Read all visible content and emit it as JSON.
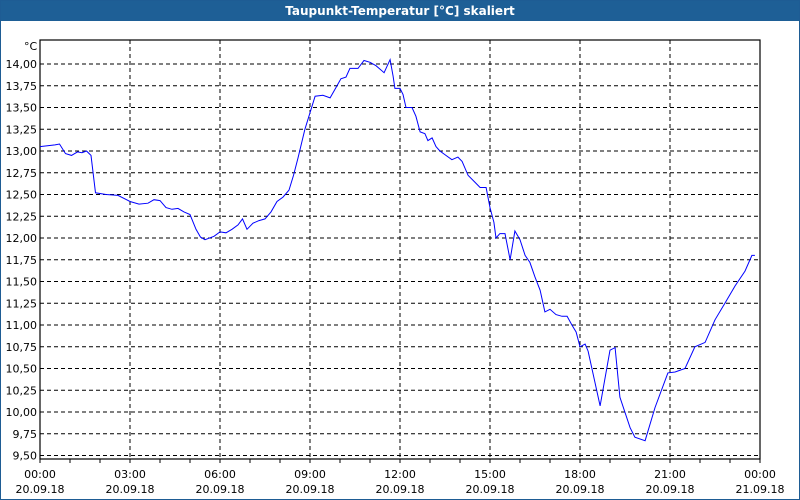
{
  "window": {
    "title": "Taupunkt-Temperatur [°C] skaliert"
  },
  "chart_data": {
    "type": "line",
    "title": "Taupunkt-Temperatur [°C] skaliert",
    "ylabel": "°C",
    "xlabel": "",
    "ylim": [
      9.5,
      14.0
    ],
    "xlim_hours": [
      0,
      24
    ],
    "grid": true,
    "line_color": "#0000ff",
    "y_ticks": [
      "9,50",
      "9,75",
      "10,00",
      "10,25",
      "10,50",
      "10,75",
      "11,00",
      "11,25",
      "11,50",
      "11,75",
      "12,00",
      "12,25",
      "12,50",
      "12,75",
      "13,00",
      "13,25",
      "13,50",
      "13,75",
      "14,00"
    ],
    "x_ticks": [
      {
        "time": "00:00",
        "date": "20.09.18"
      },
      {
        "time": "03:00",
        "date": "20.09.18"
      },
      {
        "time": "06:00",
        "date": "20.09.18"
      },
      {
        "time": "09:00",
        "date": "20.09.18"
      },
      {
        "time": "12:00",
        "date": "20.09.18"
      },
      {
        "time": "15:00",
        "date": "20.09.18"
      },
      {
        "time": "18:00",
        "date": "20.09.18"
      },
      {
        "time": "21:00",
        "date": "20.09.18"
      },
      {
        "time": "00:00",
        "date": "21.09.18"
      }
    ],
    "series": [
      {
        "name": "Taupunkt",
        "points": [
          [
            0,
            13.05
          ],
          [
            0.5,
            13.07
          ],
          [
            0.65,
            13.08
          ],
          [
            0.85,
            12.97
          ],
          [
            1.05,
            12.95
          ],
          [
            1.25,
            12.99
          ],
          [
            1.4,
            12.98
          ],
          [
            1.55,
            13.0
          ],
          [
            1.7,
            12.95
          ],
          [
            1.85,
            12.52
          ],
          [
            2.2,
            12.5
          ],
          [
            2.6,
            12.49
          ],
          [
            3.0,
            12.42
          ],
          [
            3.3,
            12.39
          ],
          [
            3.6,
            12.4
          ],
          [
            3.8,
            12.44
          ],
          [
            4.0,
            12.43
          ],
          [
            4.2,
            12.35
          ],
          [
            4.4,
            12.33
          ],
          [
            4.6,
            12.34
          ],
          [
            4.8,
            12.3
          ],
          [
            5.0,
            12.27
          ],
          [
            5.2,
            12.1
          ],
          [
            5.35,
            12.01
          ],
          [
            5.5,
            11.98
          ],
          [
            5.8,
            12.02
          ],
          [
            6.0,
            12.07
          ],
          [
            6.2,
            12.06
          ],
          [
            6.4,
            12.1
          ],
          [
            6.6,
            12.15
          ],
          [
            6.75,
            12.22
          ],
          [
            6.9,
            12.1
          ],
          [
            7.1,
            12.17
          ],
          [
            7.3,
            12.2
          ],
          [
            7.5,
            12.22
          ],
          [
            7.7,
            12.3
          ],
          [
            7.9,
            12.42
          ],
          [
            8.1,
            12.47
          ],
          [
            8.3,
            12.55
          ],
          [
            8.45,
            12.72
          ],
          [
            8.6,
            12.92
          ],
          [
            8.83,
            13.25
          ],
          [
            9.17,
            13.63
          ],
          [
            9.43,
            13.64
          ],
          [
            9.67,
            13.61
          ],
          [
            9.9,
            13.75
          ],
          [
            10.03,
            13.83
          ],
          [
            10.2,
            13.85
          ],
          [
            10.33,
            13.95
          ],
          [
            10.6,
            13.95
          ],
          [
            10.8,
            14.04
          ],
          [
            11.0,
            14.02
          ],
          [
            11.2,
            13.98
          ],
          [
            11.47,
            13.9
          ],
          [
            11.67,
            14.05
          ],
          [
            11.77,
            13.86
          ],
          [
            11.83,
            13.72
          ],
          [
            12.0,
            13.72
          ],
          [
            12.1,
            13.65
          ],
          [
            12.2,
            13.5
          ],
          [
            12.4,
            13.5
          ],
          [
            12.53,
            13.4
          ],
          [
            12.67,
            13.22
          ],
          [
            12.83,
            13.2
          ],
          [
            12.93,
            13.12
          ],
          [
            13.07,
            13.15
          ],
          [
            13.2,
            13.05
          ],
          [
            13.33,
            13.0
          ],
          [
            13.53,
            12.95
          ],
          [
            13.73,
            12.9
          ],
          [
            13.93,
            12.93
          ],
          [
            14.07,
            12.88
          ],
          [
            14.27,
            12.72
          ],
          [
            14.47,
            12.65
          ],
          [
            14.67,
            12.58
          ],
          [
            14.87,
            12.58
          ],
          [
            15.0,
            12.35
          ],
          [
            15.13,
            12.18
          ],
          [
            15.2,
            12.0
          ],
          [
            15.33,
            12.05
          ],
          [
            15.5,
            12.05
          ],
          [
            15.67,
            11.75
          ],
          [
            15.83,
            12.08
          ],
          [
            16.0,
            11.98
          ],
          [
            16.17,
            11.8
          ],
          [
            16.33,
            11.72
          ],
          [
            16.5,
            11.55
          ],
          [
            16.67,
            11.4
          ],
          [
            16.83,
            11.15
          ],
          [
            17.0,
            11.18
          ],
          [
            17.2,
            11.12
          ],
          [
            17.4,
            11.1
          ],
          [
            17.57,
            11.1
          ],
          [
            17.73,
            11.0
          ],
          [
            17.87,
            10.92
          ],
          [
            18.0,
            10.75
          ],
          [
            18.17,
            10.78
          ],
          [
            18.27,
            10.7
          ],
          [
            18.67,
            10.07
          ],
          [
            19.0,
            10.71
          ],
          [
            19.17,
            10.74
          ],
          [
            19.33,
            10.17
          ],
          [
            19.67,
            9.82
          ],
          [
            19.83,
            9.71
          ],
          [
            20.17,
            9.67
          ],
          [
            20.5,
            10.05
          ],
          [
            20.93,
            10.45
          ],
          [
            21.17,
            10.46
          ],
          [
            21.5,
            10.5
          ],
          [
            21.83,
            10.75
          ],
          [
            22.17,
            10.8
          ],
          [
            22.5,
            11.06
          ],
          [
            22.83,
            11.25
          ],
          [
            23.17,
            11.45
          ],
          [
            23.5,
            11.62
          ],
          [
            23.73,
            11.8
          ],
          [
            23.83,
            11.8
          ]
        ]
      }
    ]
  }
}
